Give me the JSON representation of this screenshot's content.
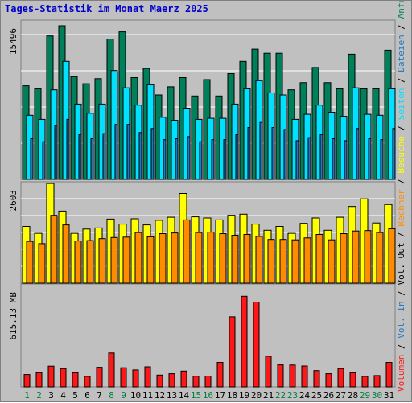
{
  "chart_data": {
    "type": "bar",
    "title": "Tages-Statistik im Monat Maerz 2025",
    "categories": [
      "1",
      "2",
      "3",
      "4",
      "5",
      "6",
      "7",
      "8",
      "9",
      "10",
      "11",
      "12",
      "13",
      "14",
      "15",
      "16",
      "17",
      "18",
      "19",
      "20",
      "21",
      "22",
      "23",
      "24",
      "25",
      "26",
      "27",
      "28",
      "29",
      "30",
      "31"
    ],
    "weekend_categories": [
      "1",
      "2",
      "8",
      "9",
      "15",
      "16",
      "22",
      "23",
      "29",
      "30"
    ],
    "colors": {
      "background": "#c0c0c0",
      "title": "#0000cc",
      "weekday_label": "#000000",
      "weekend_label": "#008040",
      "grid": "#ffffff",
      "anfragen": "#00805a",
      "dateien": "#00e0ff",
      "seiten": "#1f78c0",
      "besuche": "#ffff00",
      "rechner": "#ff8c00",
      "volumen": "#ff1818"
    },
    "panels": [
      {
        "name": "requests",
        "ylabel": "15496",
        "ylim": [
          0,
          15496
        ],
        "series": [
          {
            "name": "Anfragen",
            "values": [
              9200,
              8900,
              14100,
              15100,
              10100,
              9400,
              9900,
              13800,
              14500,
              10000,
              10900,
              8300,
              9100,
              10000,
              8200,
              9800,
              8200,
              10400,
              11600,
              12800,
              12400,
              12400,
              8800,
              9500,
              11000,
              9500,
              8900,
              12300,
              8900,
              8900,
              12700
            ]
          },
          {
            "name": "Dateien",
            "values": [
              6300,
              5900,
              8800,
              11600,
              7400,
              6500,
              7400,
              10700,
              9000,
              7300,
              9300,
              6100,
              5800,
              7000,
              5900,
              6000,
              6000,
              7400,
              8900,
              9700,
              8500,
              8300,
              5900,
              6400,
              7300,
              6600,
              6200,
              9000,
              6400,
              6300,
              8900
            ]
          },
          {
            "name": "Seiten",
            "values": [
              4000,
              3700,
              5300,
              5900,
              4400,
              4000,
              4500,
              5400,
              5400,
              4600,
              5000,
              3900,
              4000,
              4200,
              3700,
              3900,
              3900,
              4400,
              5100,
              5600,
              5100,
              4900,
              3800,
              4100,
              4400,
              4000,
              3800,
              5000,
              4000,
              3900,
              5000
            ]
          }
        ]
      },
      {
        "name": "visits",
        "ylabel": "2603",
        "ylim": [
          0,
          2603
        ],
        "series": [
          {
            "name": "Besuche",
            "values": [
              1480,
              1300,
              2600,
              1880,
              1300,
              1410,
              1440,
              1670,
              1540,
              1680,
              1520,
              1640,
              1720,
              2340,
              1730,
              1700,
              1650,
              1770,
              1800,
              1540,
              1380,
              1480,
              1300,
              1560,
              1700,
              1380,
              1720,
              2000,
              2200,
              1570,
              2050
            ]
          },
          {
            "name": "Rechner",
            "values": [
              1090,
              1030,
              1770,
              1520,
              1100,
              1110,
              1160,
              1190,
              1200,
              1320,
              1210,
              1290,
              1310,
              1650,
              1320,
              1330,
              1290,
              1250,
              1270,
              1220,
              1140,
              1140,
              1130,
              1180,
              1270,
              1130,
              1290,
              1360,
              1370,
              1320,
              1420
            ]
          }
        ]
      },
      {
        "name": "volume",
        "ylabel": "615.13 MB",
        "ylim": [
          0,
          615.13
        ],
        "series": [
          {
            "name": "Volumen",
            "values": [
              75,
              86,
              126,
              111,
              86,
              64,
              119,
              206,
              116,
              103,
              122,
              72,
              80,
              96,
              65,
              66,
              149,
              425,
              550,
              515,
              186,
              134,
              133,
              127,
              99,
              80,
              111,
              86,
              64,
              69,
              149
            ]
          }
        ]
      }
    ],
    "legend": {
      "placement": "right-vertical",
      "panel1": [
        "Anfragen",
        "Dateien",
        "Seiten"
      ],
      "panel2": [
        "Besuche",
        "Rechner",
        "Vol. Out"
      ],
      "panel3": [
        "Vol. In",
        "Volumen"
      ]
    }
  }
}
